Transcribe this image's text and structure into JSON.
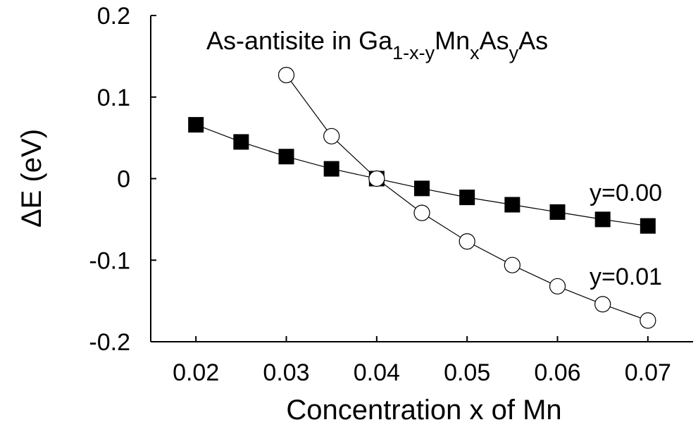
{
  "chart_data": {
    "type": "line",
    "title": {
      "prefix": "As-antisite in Ga",
      "sub1": "1-x-y",
      "mid1": "Mn",
      "sub2": "x",
      "mid2": "As",
      "sub3": "y",
      "suffix": "As"
    },
    "xlabel": "Concentration x of Mn",
    "ylabel": "ΔE (eV)",
    "xlim": [
      0.015,
      0.075
    ],
    "ylim": [
      -0.2,
      0.2
    ],
    "xticks": [
      "0.02",
      "0.03",
      "0.04",
      "0.05",
      "0.06",
      "0.07"
    ],
    "yticks": [
      "0.2",
      "0.1",
      "0",
      "-0.1",
      "-0.2"
    ],
    "grid": false,
    "legend": "none",
    "series": [
      {
        "name": "y=0.00",
        "marker": "filled-square",
        "color": "#000000",
        "x": [
          0.02,
          0.025,
          0.03,
          0.035,
          0.04,
          0.045,
          0.05,
          0.055,
          0.06,
          0.065,
          0.07
        ],
        "y": [
          0.066,
          0.045,
          0.027,
          0.012,
          0.0,
          -0.012,
          -0.023,
          -0.032,
          -0.041,
          -0.05,
          -0.058
        ]
      },
      {
        "name": "y=0.01",
        "marker": "open-circle",
        "color": "#000000",
        "x": [
          0.03,
          0.035,
          0.04,
          0.045,
          0.05,
          0.055,
          0.06,
          0.065,
          0.07
        ],
        "y": [
          0.127,
          0.052,
          0.0,
          -0.042,
          -0.077,
          -0.106,
          -0.132,
          -0.154,
          -0.174
        ]
      }
    ]
  }
}
